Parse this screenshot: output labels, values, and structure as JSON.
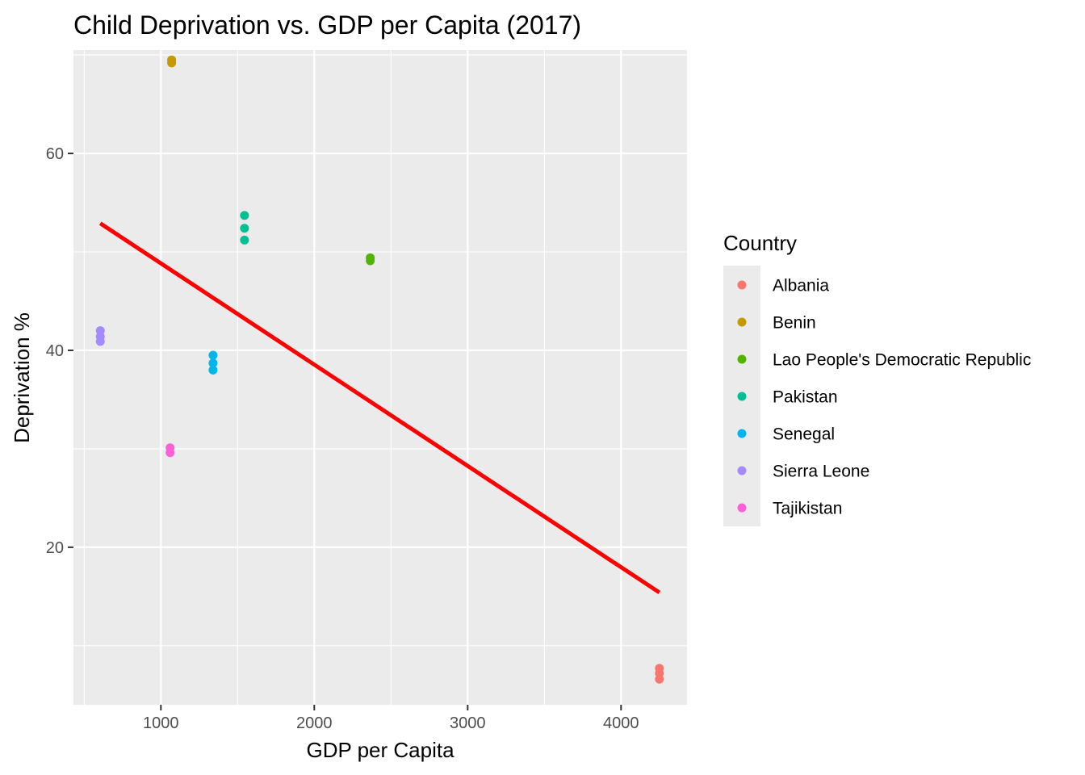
{
  "chart_data": {
    "type": "scatter",
    "title": "Child Deprivation vs. GDP per Capita (2017)",
    "xlabel": "GDP per Capita",
    "ylabel": "Deprivation %",
    "xlim": [
      430,
      4430
    ],
    "ylim": [
      4,
      70.5
    ],
    "x_ticks": [
      1000,
      2000,
      3000,
      4000
    ],
    "x_tick_labels": [
      "1000",
      "2000",
      "3000",
      "4000"
    ],
    "x_minor_ticks": [
      500,
      1500,
      2500,
      3500
    ],
    "y_ticks": [
      20,
      40,
      60
    ],
    "y_tick_labels": [
      "20",
      "40",
      "60"
    ],
    "y_minor_ticks": [
      10,
      30,
      50,
      70
    ],
    "grid": true,
    "background": "#ebebeb",
    "legend": {
      "title": "Country",
      "position": "right"
    },
    "series": [
      {
        "name": "Albania",
        "color": "#F8766D",
        "points": [
          [
            4250,
            7.7
          ],
          [
            4250,
            7.2
          ],
          [
            4250,
            6.6
          ]
        ]
      },
      {
        "name": "Benin",
        "color": "#C49A00",
        "points": [
          [
            1070,
            69.5
          ],
          [
            1070,
            69.2
          ]
        ]
      },
      {
        "name": "Lao People's Democratic Republic",
        "color": "#53B400",
        "points": [
          [
            2365,
            49.4
          ],
          [
            2365,
            49.1
          ]
        ]
      },
      {
        "name": "Pakistan",
        "color": "#00C094",
        "points": [
          [
            1545,
            53.7
          ],
          [
            1545,
            52.4
          ],
          [
            1545,
            51.2
          ]
        ]
      },
      {
        "name": "Senegal",
        "color": "#00B6EB",
        "points": [
          [
            1340,
            39.5
          ],
          [
            1340,
            38.7
          ],
          [
            1340,
            38.0
          ]
        ]
      },
      {
        "name": "Sierra Leone",
        "color": "#A58AFF",
        "points": [
          [
            605,
            42.0
          ],
          [
            605,
            41.4
          ],
          [
            605,
            40.9
          ]
        ]
      },
      {
        "name": "Tajikistan",
        "color": "#FB61D7",
        "points": [
          [
            1060,
            30.1
          ],
          [
            1060,
            29.6
          ]
        ]
      }
    ],
    "trend_line": {
      "color": "#FF0000",
      "x": [
        605,
        4250
      ],
      "y": [
        52.9,
        15.4
      ]
    }
  }
}
